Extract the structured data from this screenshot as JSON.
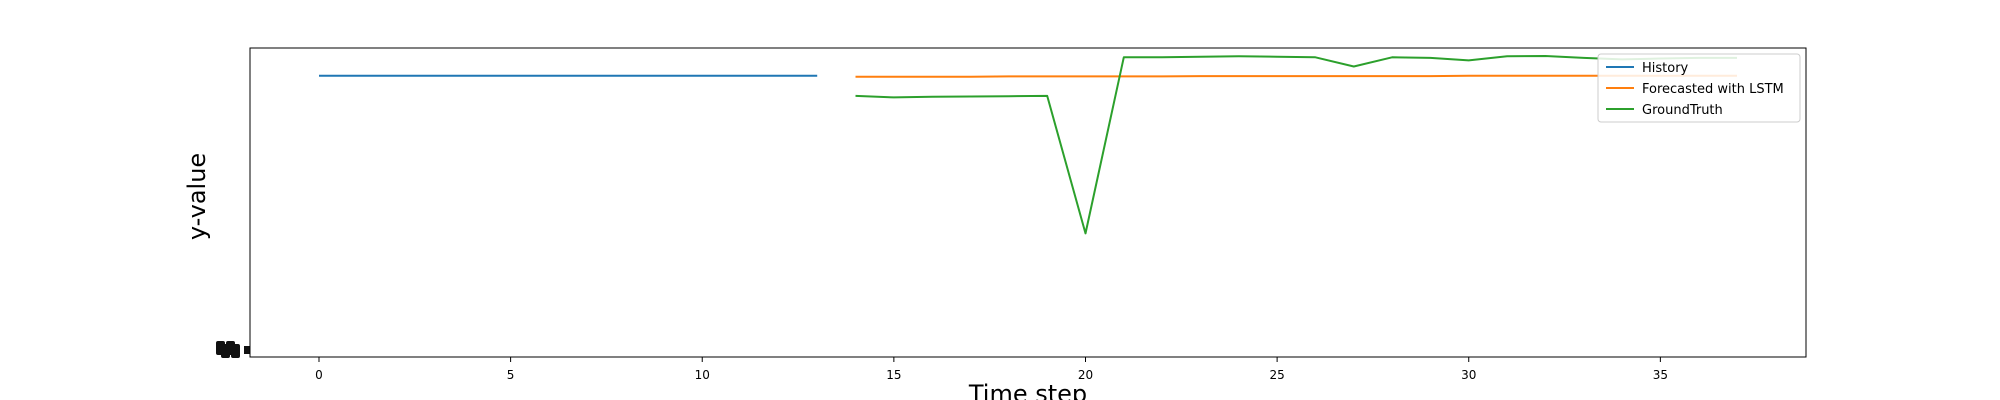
{
  "chart_data": {
    "type": "line",
    "title": "",
    "xlabel": "Time step",
    "ylabel": "y-value",
    "xlim": [
      -1.8,
      38.8
    ],
    "ylim": [
      0,
      1.0
    ],
    "x_ticks": [
      0,
      5,
      10,
      15,
      20,
      25,
      30,
      35
    ],
    "grid": false,
    "legend": {
      "position": "top-right"
    },
    "series": [
      {
        "name": "History",
        "color": "#1f77b4",
        "x": [
          0,
          1,
          2,
          3,
          4,
          5,
          6,
          7,
          8,
          9,
          10,
          11,
          12,
          13
        ],
        "y": [
          0.91,
          0.91,
          0.91,
          0.91,
          0.91,
          0.91,
          0.91,
          0.91,
          0.91,
          0.91,
          0.91,
          0.91,
          0.91,
          0.91
        ]
      },
      {
        "name": "Forecasted with LSTM",
        "color": "#ff7f0e",
        "x": [
          14,
          15,
          16,
          17,
          18,
          19,
          20,
          21,
          22,
          23,
          24,
          25,
          26,
          27,
          28,
          29,
          30,
          31,
          32,
          33,
          34,
          35,
          36,
          37
        ],
        "y": [
          0.907,
          0.907,
          0.907,
          0.907,
          0.908,
          0.908,
          0.908,
          0.908,
          0.908,
          0.909,
          0.909,
          0.909,
          0.909,
          0.909,
          0.909,
          0.909,
          0.91,
          0.91,
          0.91,
          0.91,
          0.91,
          0.91,
          0.91,
          0.91
        ]
      },
      {
        "name": "GroundTruth",
        "color": "#2ca02c",
        "x": [
          14,
          15,
          16,
          17,
          18,
          19,
          20,
          21,
          22,
          23,
          24,
          25,
          26,
          27,
          28,
          29,
          30,
          31,
          32,
          33,
          34,
          35,
          36,
          37
        ],
        "y": [
          0.845,
          0.84,
          0.842,
          0.843,
          0.844,
          0.845,
          0.4,
          0.97,
          0.97,
          0.972,
          0.973,
          0.972,
          0.97,
          0.94,
          0.97,
          0.968,
          0.96,
          0.973,
          0.974,
          0.968,
          0.963,
          0.966,
          0.968,
          0.968
        ]
      }
    ]
  }
}
